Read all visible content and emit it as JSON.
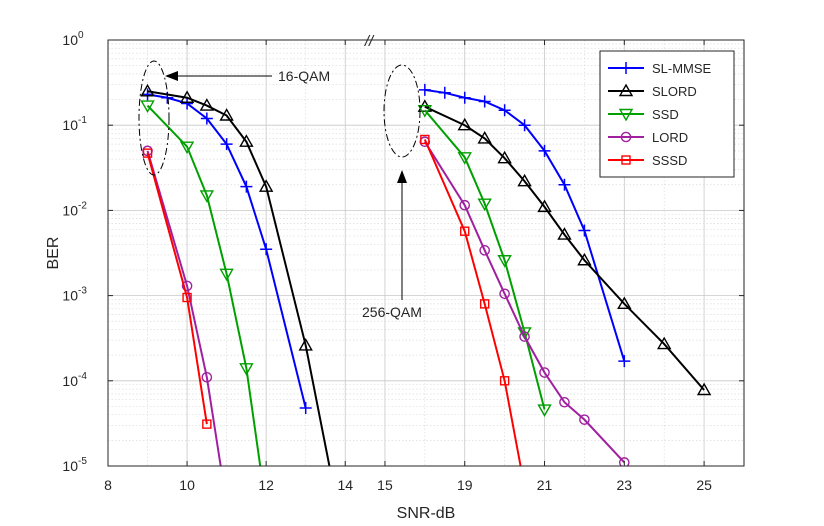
{
  "chart_data": {
    "type": "line",
    "xlabel": "SNR-dB",
    "ylabel": "BER",
    "yscale": "log",
    "ylim": [
      1e-05,
      1
    ],
    "grid": true,
    "legend_location": "top-right",
    "axis_break_label": "//",
    "x_tick_labels": [
      "8",
      "10",
      "12",
      "14",
      "15",
      "19",
      "21",
      "23",
      "25"
    ],
    "y_tick_labels": [
      {
        "base": "10",
        "exp": "0"
      },
      {
        "base": "10",
        "exp": "-1"
      },
      {
        "base": "10",
        "exp": "-2"
      },
      {
        "base": "10",
        "exp": "-3"
      },
      {
        "base": "10",
        "exp": "-4"
      },
      {
        "base": "10",
        "exp": "-5"
      }
    ],
    "annotations": [
      {
        "text": "16-QAM"
      },
      {
        "text": "256-QAM"
      }
    ],
    "panels": {
      "left": {
        "modulation": "16-QAM",
        "xlim": [
          8,
          14.5
        ]
      },
      "right": {
        "modulation": "256-QAM",
        "xlim": [
          16.5,
          26
        ]
      }
    },
    "series": [
      {
        "name": "SL-MMSE",
        "color": "#0000ff",
        "marker": "plus",
        "left": {
          "x": [
            9,
            9.5,
            10,
            10.5,
            11,
            11.5,
            12,
            13
          ],
          "y": [
            0.23,
            0.21,
            0.18,
            0.12,
            0.06,
            0.019,
            0.0035,
            4.8e-05
          ]
        },
        "right": {
          "x": [
            18,
            18.5,
            19,
            19.5,
            20,
            20.5,
            21,
            21.5,
            22,
            23
          ],
          "y": [
            0.26,
            0.24,
            0.21,
            0.19,
            0.15,
            0.1,
            0.05,
            0.02,
            0.0058,
            0.00017
          ]
        }
      },
      {
        "name": "SLORD",
        "color": "#000000",
        "marker": "triangle-up",
        "left": {
          "x": [
            9,
            10,
            10.5,
            11,
            11.5,
            12,
            13,
            13.6
          ],
          "y": [
            0.25,
            0.21,
            0.17,
            0.13,
            0.064,
            0.019,
            0.00026,
            1e-05
          ]
        },
        "right": {
          "x": [
            18,
            19,
            19.5,
            20,
            20.5,
            21,
            21.5,
            22,
            23,
            24,
            25
          ],
          "y": [
            0.165,
            0.1,
            0.07,
            0.041,
            0.022,
            0.011,
            0.0052,
            0.0026,
            0.0008,
            0.00027,
            7.8e-05
          ]
        }
      },
      {
        "name": "SSD",
        "color": "#00a000",
        "marker": "triangle-down",
        "left": {
          "x": [
            9,
            10,
            10.5,
            11,
            11.5,
            11.85
          ],
          "y": [
            0.17,
            0.056,
            0.015,
            0.0018,
            0.00014,
            1e-05
          ]
        },
        "right": {
          "x": [
            18,
            19,
            19.5,
            20,
            20.5,
            21
          ],
          "y": [
            0.15,
            0.042,
            0.012,
            0.0026,
            0.00037,
            4.6e-05
          ]
        }
      },
      {
        "name": "LORD",
        "color": "#a020a0",
        "marker": "circle",
        "left": {
          "x": [
            9,
            10,
            10.5,
            10.85
          ],
          "y": [
            0.05,
            0.0013,
            0.00011,
            1e-05
          ]
        },
        "right": {
          "x": [
            18,
            19,
            19.5,
            20,
            20.5,
            21,
            21.5,
            22,
            23
          ],
          "y": [
            0.064,
            0.0115,
            0.0034,
            0.00105,
            0.00033,
            0.000125,
            5.6e-05,
            3.5e-05,
            1.1e-05
          ]
        }
      },
      {
        "name": "SSSD",
        "color": "#ff0000",
        "marker": "square",
        "left": {
          "x": [
            9,
            10,
            10.5
          ],
          "y": [
            0.047,
            0.00095,
            3.1e-05
          ]
        },
        "right": {
          "x": [
            18,
            19,
            19.5,
            20,
            20.4
          ],
          "y": [
            0.068,
            0.0057,
            0.0008,
            0.0001,
            1e-05
          ]
        }
      }
    ]
  }
}
